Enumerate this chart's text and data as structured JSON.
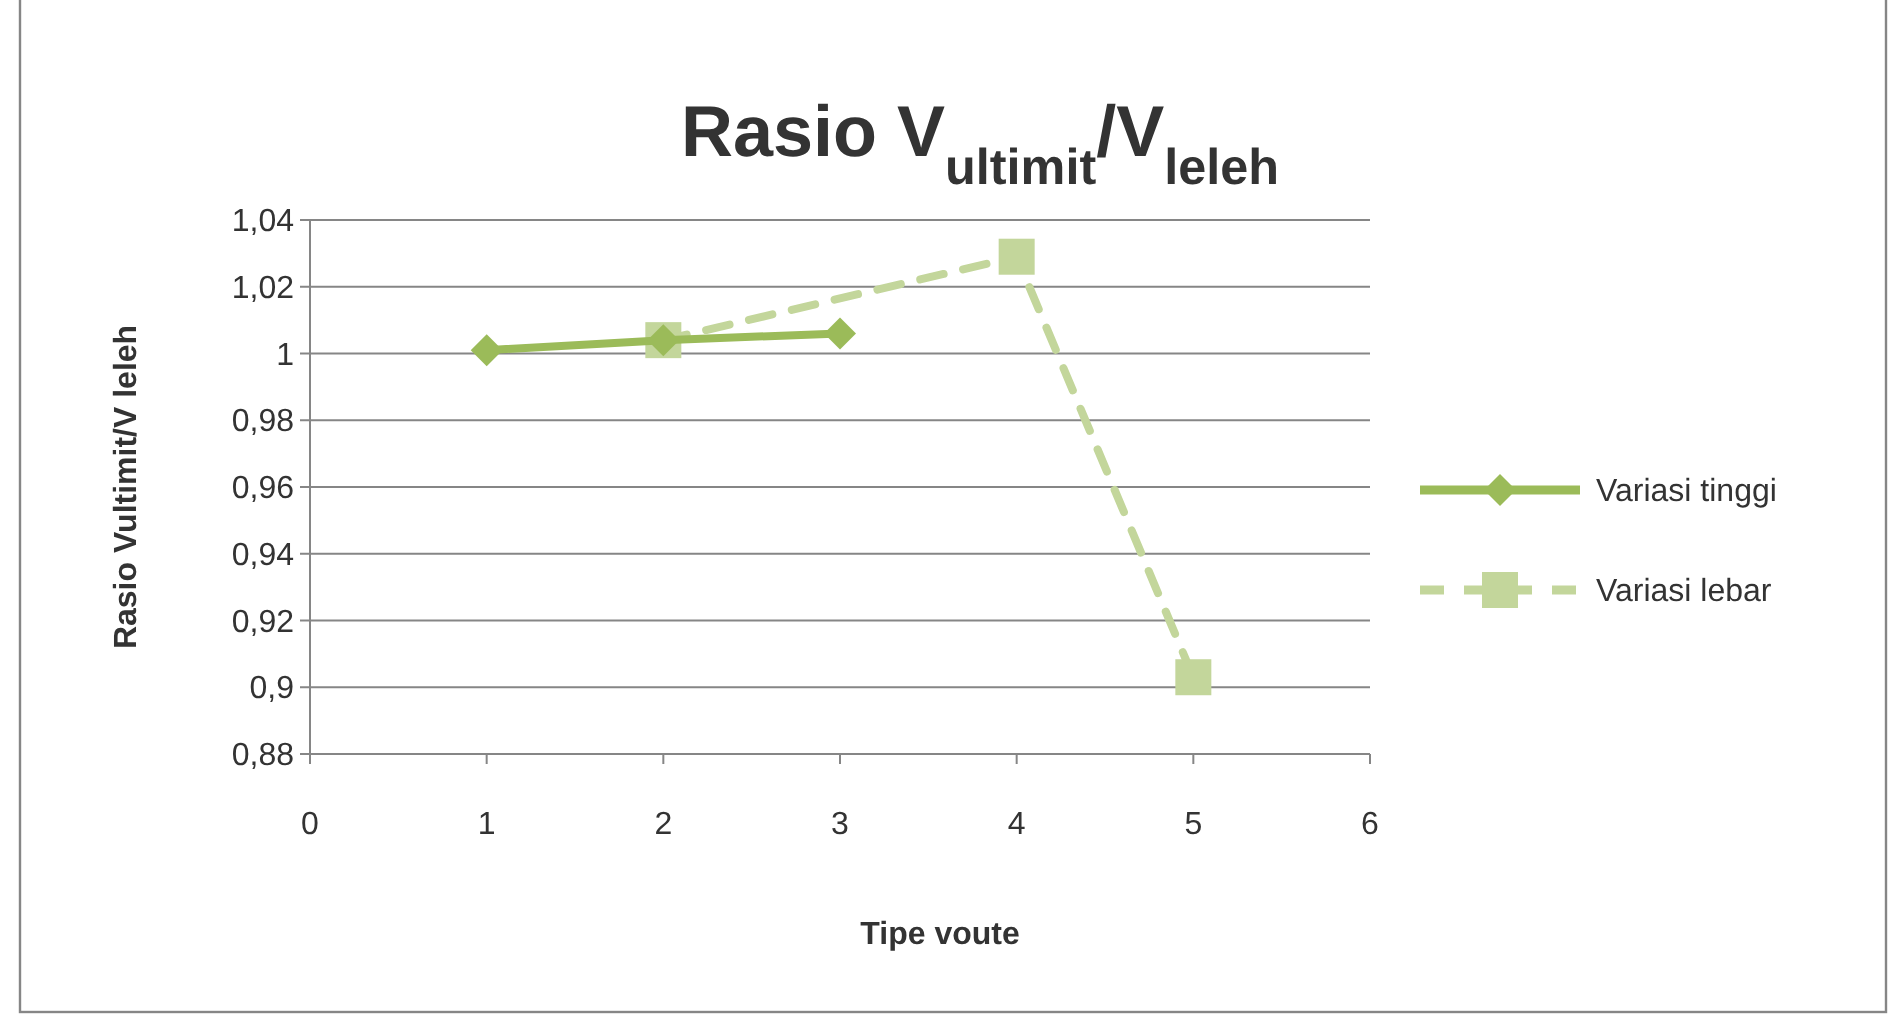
{
  "chart_data": {
    "type": "line",
    "title": "Rasio V$_{ultimit}$/V$_{leleh}$",
    "xlabel": "Tipe voute",
    "ylabel": "Rasio Vultimit/V leleh",
    "xlim": [
      0,
      6
    ],
    "xticks": [
      0,
      1,
      2,
      3,
      4,
      5,
      6
    ],
    "ylim": [
      0.88,
      1.04
    ],
    "yticks": [
      {
        "value": 0.88,
        "label": "0,88"
      },
      {
        "value": 0.9,
        "label": "0,9"
      },
      {
        "value": 0.92,
        "label": "0,92"
      },
      {
        "value": 0.94,
        "label": "0,94"
      },
      {
        "value": 0.96,
        "label": "0,96"
      },
      {
        "value": 0.98,
        "label": "0,98"
      },
      {
        "value": 1,
        "label": "1"
      },
      {
        "value": 1.02,
        "label": "1,02"
      },
      {
        "value": 1.04,
        "label": "1,04"
      }
    ],
    "grid": "y",
    "legend": "right",
    "series": [
      {
        "name": "Variasi tinggi",
        "color": "#9bbb59",
        "x": [
          1,
          2,
          3
        ],
        "values": [
          1.001,
          1.004,
          1.006
        ],
        "marker": "diamond",
        "line_style": "solid"
      },
      {
        "name": "Variasi lebar",
        "color": "#c3d69b",
        "x": [
          2,
          4,
          5
        ],
        "values": [
          1.004,
          1.029,
          0.903
        ],
        "marker": "square",
        "line_style": "dashed"
      }
    ]
  }
}
